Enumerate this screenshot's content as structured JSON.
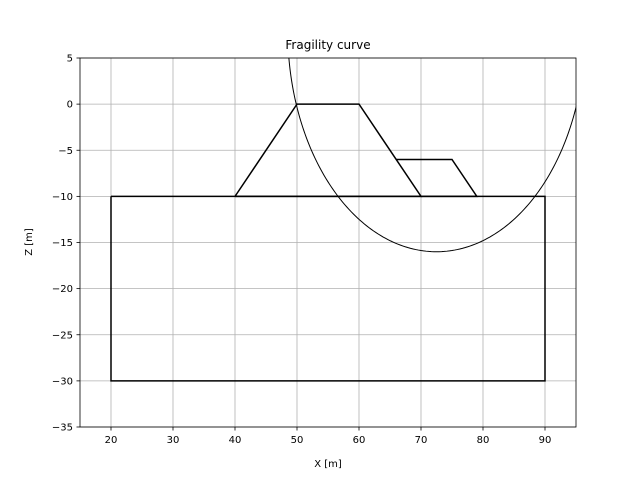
{
  "chart_data": {
    "type": "line",
    "title": "Fragility curve",
    "xlabel": "X [m]",
    "ylabel": "Z [m]",
    "xlim": [
      15,
      95
    ],
    "ylim": [
      -35,
      5
    ],
    "xticks": [
      20,
      30,
      40,
      50,
      60,
      70,
      80,
      90
    ],
    "yticks": [
      5,
      0,
      -5,
      -10,
      -15,
      -20,
      -25,
      -30,
      -35
    ],
    "grid": true,
    "series": [
      {
        "x": [
          40,
          50,
          60,
          70,
          40
        ],
        "y": [
          -10,
          0,
          0,
          -10,
          -10
        ],
        "color": "#000000"
      },
      {
        "x": [
          66,
          75,
          79,
          70
        ],
        "y": [
          -6,
          -6,
          -10,
          -10
        ],
        "color": "#000000"
      },
      {
        "x": [
          20,
          90,
          90,
          20,
          20
        ],
        "y": [
          -10,
          -10,
          -30,
          -30,
          -10
        ],
        "color": "#000000"
      }
    ],
    "circle": {
      "cx": 72.5,
      "cy": 8,
      "r": 24,
      "color": "#000000"
    }
  }
}
